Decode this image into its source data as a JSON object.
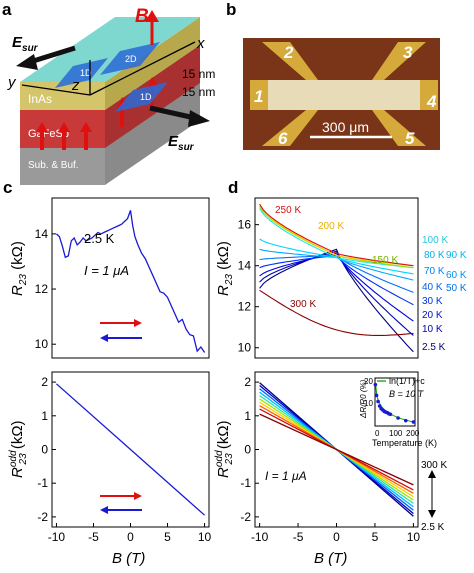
{
  "panels": {
    "a": {
      "label": "a",
      "vector_B": "B",
      "vector_E": "E",
      "e_sub": "sur",
      "axis_x": "x",
      "axis_y": "y",
      "axis_z": "z",
      "channels": [
        "1D",
        "2D",
        "1D"
      ],
      "thickness_labels": [
        "15 nm",
        "15 nm"
      ],
      "layers": [
        "InAs",
        "GaFeSb",
        "Sub. & Buf."
      ]
    },
    "b": {
      "label": "b",
      "contacts": [
        "2",
        "3",
        "1",
        "4",
        "6",
        "5"
      ],
      "scalebar": "300 μm"
    },
    "c": {
      "label": "c",
      "ylabel_top": {
        "main": "R",
        "sub": "23",
        "unit": " (kΩ)"
      },
      "ylabel_bottom": {
        "main": "R",
        "sup": "odd",
        "sub": "23",
        "unit": " (kΩ)"
      },
      "xlabel": "B (T)",
      "temp": "2.5 K",
      "current": "I = 1 μA"
    },
    "d": {
      "label": "d",
      "ylabel_top": {
        "main": "R",
        "sub": "23",
        "unit": " (kΩ)"
      },
      "ylabel_bottom": {
        "main": "R",
        "sup": "odd",
        "sub": "23",
        "unit": " (kΩ)"
      },
      "xlabel": "B (T)",
      "temps_in_plot": [
        "250 K",
        "200 K",
        "150 K",
        "300 K"
      ],
      "temps_right": [
        "100 K",
        "80 K",
        "70 K",
        "40 K",
        "30 K",
        "20 K",
        "10 K",
        "2.5 K"
      ],
      "temps_right2": [
        "90 K",
        "60 K",
        "50 K"
      ],
      "current": "I = 1 μA",
      "range_top": "300 K",
      "range_bottom": "2.5 K",
      "inset": {
        "legend": "ln(1/T)+c",
        "field": "B = 10 T",
        "ylabel": "ΔR/R0 (%)",
        "xlabel": "Temperature (K)",
        "xticks": [
          "0",
          "100",
          "200"
        ],
        "yticks": [
          "20",
          "10"
        ]
      }
    }
  },
  "chart_data": [
    {
      "id": "c-top",
      "type": "line",
      "xlabel": "B (T)",
      "ylabel": "R23 (kΩ)",
      "xlim": [
        -10.6,
        10.6
      ],
      "ylim": [
        9.5,
        15.3
      ],
      "yticks": [
        10,
        12,
        14
      ],
      "series": [
        {
          "color": "#1a1ad6",
          "x": [
            -10,
            -9.6,
            -9.2,
            -8.8,
            -8.4,
            -8,
            -7.6,
            -7.2,
            -6.8,
            -6.4,
            -6,
            -5.6,
            -5.2,
            -4.8,
            -4.4,
            -4,
            -3.6,
            -3.2,
            -2.8,
            -2.4,
            -2,
            -1.6,
            -1.2,
            -0.8,
            -0.4,
            0,
            0.3,
            0.6,
            1,
            1.5,
            2,
            2.5,
            3,
            3.5,
            4,
            4.5,
            5,
            5.5,
            6,
            6.5,
            7,
            7.5,
            8,
            8.5,
            9,
            9.5,
            10
          ],
          "y": [
            14.0,
            13.9,
            13.55,
            13.15,
            13.2,
            13.75,
            13.85,
            13.6,
            13.7,
            13.85,
            13.75,
            13.8,
            13.85,
            13.95,
            14.05,
            14.0,
            14.05,
            14.1,
            14.15,
            14.2,
            14.25,
            14.3,
            14.35,
            14.45,
            14.55,
            14.85,
            14.3,
            13.9,
            13.6,
            13.3,
            13.1,
            12.8,
            12.5,
            12.2,
            11.9,
            11.85,
            11.7,
            11.4,
            11.1,
            10.8,
            10.9,
            10.55,
            10.35,
            10.3,
            9.75,
            9.9,
            9.7
          ]
        }
      ]
    },
    {
      "id": "c-bottom",
      "type": "line",
      "xlabel": "B (T)",
      "ylabel": "Rodd23 (kΩ)",
      "xlim": [
        -10.6,
        10.6
      ],
      "ylim": [
        -2.3,
        2.3
      ],
      "xticks": [
        -10,
        -5,
        0,
        5,
        10
      ],
      "yticks": [
        -2,
        -1,
        0,
        1,
        2
      ],
      "series": [
        {
          "color": "#1a1ad6",
          "x": [
            -10,
            10
          ],
          "y": [
            1.95,
            -1.95
          ]
        }
      ]
    },
    {
      "id": "d-top",
      "type": "line",
      "xlabel": "B (T)",
      "ylabel": "R23 (kΩ)",
      "xlim": [
        -10.6,
        10.6
      ],
      "ylim": [
        9.5,
        17.3
      ],
      "yticks": [
        10,
        12,
        14,
        16
      ],
      "series": [
        {
          "name": "2.5 K",
          "color": "#000080",
          "y_left": 12.9,
          "y_mid": 14.8,
          "y_right": 9.8
        },
        {
          "name": "10 K",
          "color": "#0000b4",
          "y_left": 13.2,
          "y_mid": 14.7,
          "y_right": 10.6
        },
        {
          "name": "20 K",
          "color": "#0000e0",
          "y_left": 13.5,
          "y_mid": 14.6,
          "y_right": 11.3
        },
        {
          "name": "30 K",
          "color": "#0030ff",
          "y_left": 13.9,
          "y_mid": 14.5,
          "y_right": 12.1
        },
        {
          "name": "40 K",
          "color": "#0070ff",
          "y_left": 14.3,
          "y_mid": 14.5,
          "y_right": 12.7
        },
        {
          "name": "50 K",
          "color": "#00a8ff",
          "y_left": 14.8,
          "y_mid": 14.4,
          "y_right": 13.3
        },
        {
          "name": "60 K",
          "color": "#00d4ff",
          "y_left": 15.3,
          "y_mid": 14.4,
          "y_right": 13.6
        },
        {
          "name": "100 K",
          "color": "#20e8e0",
          "y_left": 16.8,
          "y_mid": 14.4,
          "y_right": 13.9
        },
        {
          "name": "150 K",
          "color": "#a0e000",
          "y_left": 16.9,
          "y_mid": 14.5,
          "y_right": 13.9
        },
        {
          "name": "200 K",
          "color": "#ffc800",
          "y_left": 17.0,
          "y_mid": 14.5,
          "y_right": 14.0
        },
        {
          "name": "250 K",
          "color": "#d81010",
          "y_left": 17.0,
          "y_mid": 14.6,
          "y_right": 14.0
        },
        {
          "name": "300 K",
          "color": "#8b0000",
          "y_left": 12.8,
          "y_mid": 11.2,
          "y_right": 10.7
        }
      ]
    },
    {
      "id": "d-bottom",
      "type": "line",
      "xlabel": "B (T)",
      "ylabel": "Rodd23 (kΩ)",
      "xlim": [
        -10.6,
        10.6
      ],
      "ylim": [
        -2.3,
        2.3
      ],
      "xticks": [
        -10,
        -5,
        0,
        5,
        10
      ],
      "yticks": [
        -2,
        -1,
        0,
        1,
        2
      ],
      "series": [
        {
          "color": "#000080",
          "slope": -0.198
        },
        {
          "color": "#0000d0",
          "slope": -0.19
        },
        {
          "color": "#0060ff",
          "slope": -0.18
        },
        {
          "color": "#00c0ff",
          "slope": -0.17
        },
        {
          "color": "#30e0a0",
          "slope": -0.16
        },
        {
          "color": "#a0e000",
          "slope": -0.15
        },
        {
          "color": "#ffd000",
          "slope": -0.14
        },
        {
          "color": "#ff6000",
          "slope": -0.13
        },
        {
          "color": "#d01010",
          "slope": -0.12
        },
        {
          "color": "#8b0000",
          "slope": -0.105
        }
      ]
    },
    {
      "id": "d-inset",
      "type": "scatter",
      "xlabel": "Temperature (K)",
      "ylabel": "ΔR/R0 (%)",
      "xlim": [
        0,
        260
      ],
      "ylim": [
        4,
        22
      ],
      "points": {
        "x": [
          2.5,
          10,
          20,
          30,
          40,
          50,
          60,
          70,
          80,
          90,
          100,
          150,
          200,
          250
        ],
        "y": [
          19.5,
          15.5,
          13.2,
          11.5,
          10.5,
          10.0,
          9.5,
          9.2,
          9.0,
          8.6,
          8.4,
          7.0,
          6.0,
          5.5
        ]
      }
    }
  ]
}
